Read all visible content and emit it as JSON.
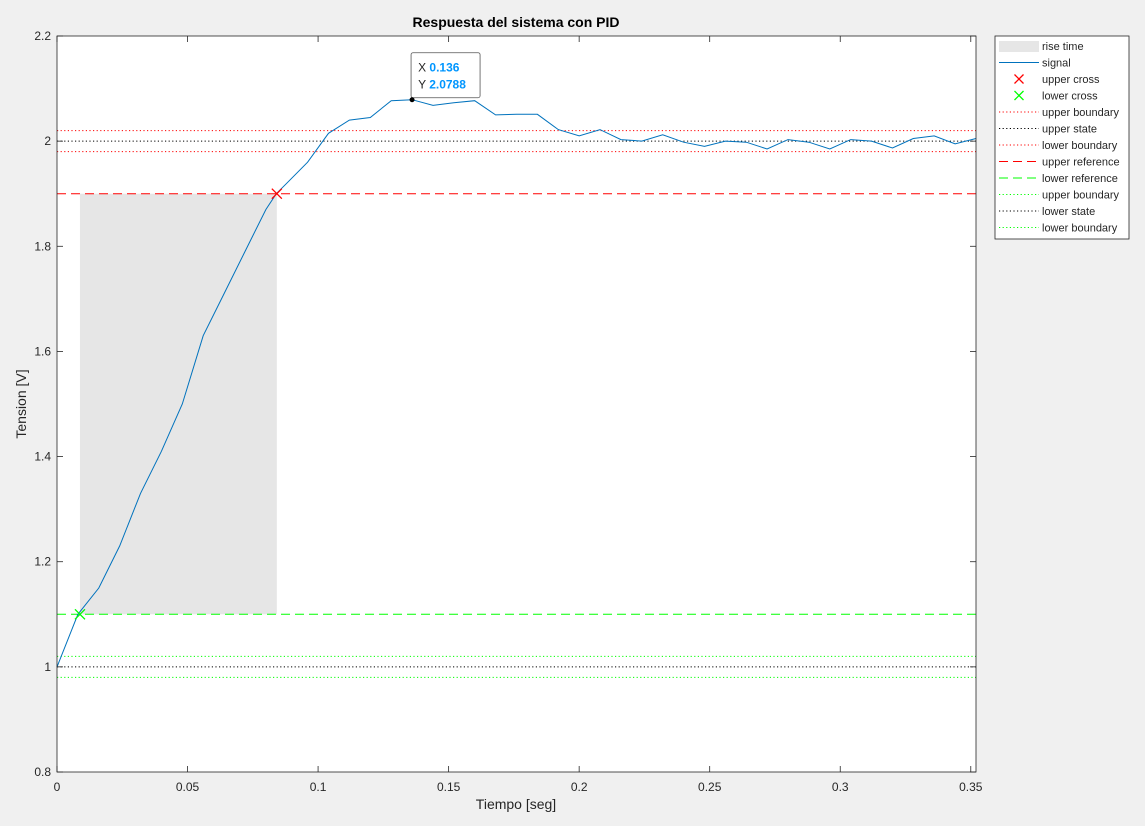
{
  "chart_data": {
    "type": "line",
    "title": "Respuesta del sistema con PID",
    "xlabel": "Tiempo [seg]",
    "ylabel": "Tension [V]",
    "xlim": [
      0,
      0.352
    ],
    "ylim": [
      0.8,
      2.2
    ],
    "xticks": [
      0,
      0.05,
      0.1,
      0.15,
      0.2,
      0.25,
      0.3,
      0.35
    ],
    "xtick_labels": [
      "0",
      "0.05",
      "0.1",
      "0.15",
      "0.2",
      "0.25",
      "0.3",
      "0.35"
    ],
    "yticks": [
      0.8,
      1,
      1.2,
      1.4,
      1.6,
      1.8,
      2,
      2.2
    ],
    "ytick_labels": [
      "0.8",
      "1",
      "1.2",
      "1.4",
      "1.6",
      "1.8",
      "2",
      "2.2"
    ],
    "grid": false,
    "legend_position": "outside-top-right",
    "rise_time": {
      "name": "rise time",
      "x_start": 0.0088,
      "x_end": 0.0842,
      "y_bottom": 1.1,
      "y_top": 1.9,
      "color": "#e6e6e6"
    },
    "signal": {
      "name": "signal",
      "color": "#0072bd",
      "x": [
        0,
        0.008,
        0.016,
        0.024,
        0.032,
        0.04,
        0.048,
        0.056,
        0.064,
        0.072,
        0.08,
        0.084,
        0.088,
        0.096,
        0.104,
        0.112,
        0.12,
        0.128,
        0.136,
        0.144,
        0.152,
        0.16,
        0.168,
        0.176,
        0.184,
        0.192,
        0.2,
        0.208,
        0.216,
        0.224,
        0.232,
        0.24,
        0.248,
        0.256,
        0.264,
        0.272,
        0.28,
        0.288,
        0.296,
        0.304,
        0.312,
        0.32,
        0.328,
        0.336,
        0.344,
        0.352
      ],
      "y": [
        1.0,
        1.1,
        1.15,
        1.23,
        1.33,
        1.41,
        1.5,
        1.63,
        1.71,
        1.79,
        1.87,
        1.9,
        1.92,
        1.96,
        2.015,
        2.04,
        2.045,
        2.077,
        2.0788,
        2.068,
        2.073,
        2.077,
        2.05,
        2.051,
        2.051,
        2.022,
        2.01,
        2.022,
        2.003,
        2.0,
        2.012,
        1.998,
        1.99,
        2.0,
        1.998,
        1.985,
        2.003,
        1.998,
        1.985,
        2.003,
        2.0,
        1.987,
        2.005,
        2.01,
        1.995,
        2.005
      ]
    },
    "upper_cross": {
      "name": "upper cross",
      "x": 0.0842,
      "y": 1.9,
      "color": "#ff0000"
    },
    "lower_cross": {
      "name": "lower cross",
      "x": 0.0088,
      "y": 1.1,
      "color": "#00ff00"
    },
    "hlines": [
      {
        "name": "upper boundary",
        "y": 2.02,
        "style": "dotted",
        "color": "#ff0000"
      },
      {
        "name": "upper state",
        "y": 2.0,
        "style": "dotted",
        "color": "#000000"
      },
      {
        "name": "lower boundary",
        "y": 1.98,
        "style": "dotted",
        "color": "#ff0000"
      },
      {
        "name": "upper reference",
        "y": 1.9,
        "style": "dashed",
        "color": "#ff0000"
      },
      {
        "name": "lower reference",
        "y": 1.1,
        "style": "dashed",
        "color": "#00ff00"
      },
      {
        "name": "upper boundary",
        "y": 1.02,
        "style": "dotted",
        "color": "#00ff00"
      },
      {
        "name": "lower state",
        "y": 1.0,
        "style": "dotted",
        "color": "#000000"
      },
      {
        "name": "lower boundary",
        "y": 0.98,
        "style": "dotted",
        "color": "#00ff00"
      }
    ],
    "datatip": {
      "x": 0.136,
      "y": 2.0788,
      "x_label": "X",
      "y_label": "Y",
      "x_text": "0.136",
      "y_text": "2.0788",
      "value_color": "#0096ff"
    },
    "legend": [
      {
        "label": "rise time",
        "kind": "patch",
        "color": "#e6e6e6"
      },
      {
        "label": "signal",
        "kind": "line",
        "style": "solid",
        "color": "#0072bd"
      },
      {
        "label": "upper cross",
        "kind": "marker",
        "color": "#ff0000"
      },
      {
        "label": "lower cross",
        "kind": "marker",
        "color": "#00ff00"
      },
      {
        "label": "upper boundary",
        "kind": "line",
        "style": "dotted",
        "color": "#ff0000"
      },
      {
        "label": "upper state",
        "kind": "line",
        "style": "dotted",
        "color": "#000000"
      },
      {
        "label": "lower boundary",
        "kind": "line",
        "style": "dotted",
        "color": "#ff0000"
      },
      {
        "label": "upper reference",
        "kind": "line",
        "style": "dashed",
        "color": "#ff0000"
      },
      {
        "label": "lower reference",
        "kind": "line",
        "style": "dashed",
        "color": "#00ff00"
      },
      {
        "label": "upper boundary",
        "kind": "line",
        "style": "dotted",
        "color": "#00ff00"
      },
      {
        "label": "lower state",
        "kind": "line",
        "style": "dotted",
        "color": "#000000"
      },
      {
        "label": "lower boundary",
        "kind": "line",
        "style": "dotted",
        "color": "#00ff00"
      }
    ]
  }
}
